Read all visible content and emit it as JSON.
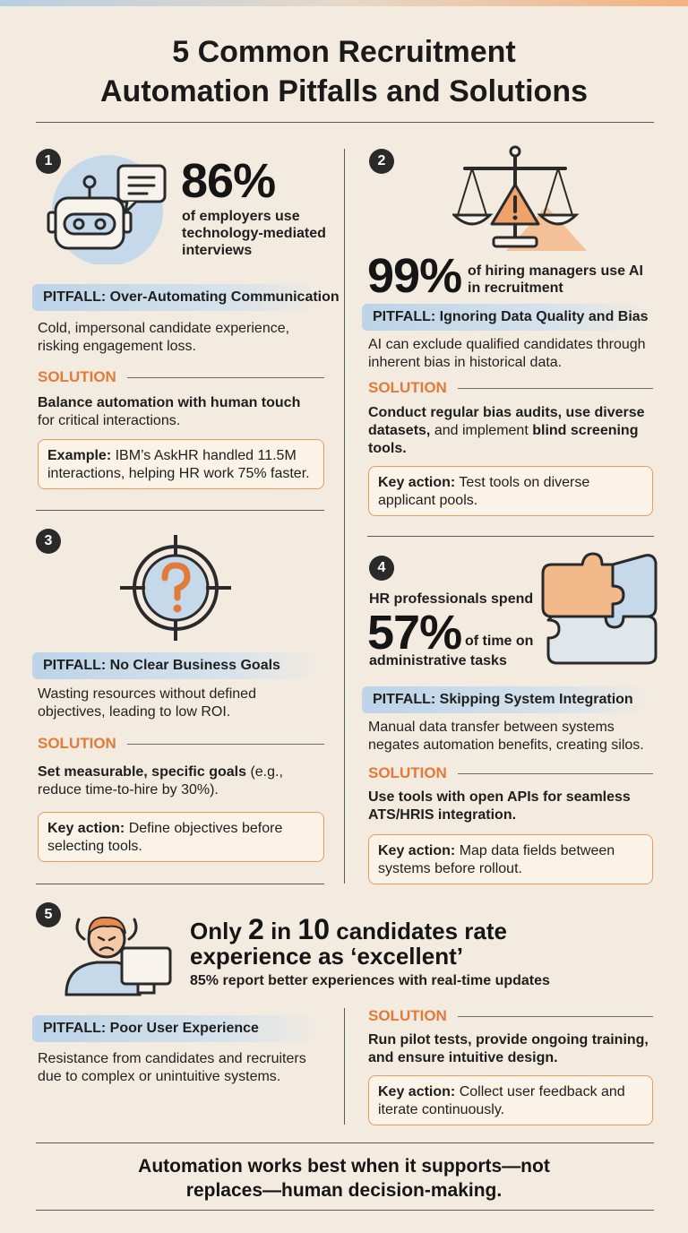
{
  "title": {
    "line1": "5 Common Recruitment",
    "line2": "Automation Pitfalls and Solutions"
  },
  "sections": [
    {
      "number": "1",
      "icon": "robot-chat-icon",
      "stat_value": "86%",
      "stat_text": "of employers use technology-mediated interviews",
      "pitfall": "PITFALL: Over-Automating Communication",
      "description": "Cold, impersonal candidate experience, risking engagement loss.",
      "solution_label": "SOLUTION",
      "solution_bold": "Balance automation with human touch",
      "solution_rest": "for critical interactions.",
      "box_label": "Example:",
      "box_text": "IBM’s AskHR handled 11.5M interactions, helping HR work 75% faster."
    },
    {
      "number": "2",
      "icon": "scale-warning-icon",
      "stat_value": "99%",
      "stat_text": "of hiring managers use AI in recruitment",
      "pitfall": "PITFALL: Ignoring Data Quality and Bias",
      "description": "AI can exclude qualified candidates through inherent bias in historical data.",
      "solution_label": "SOLUTION",
      "solution_bold_1": "Conduct regular bias audits, use diverse datasets,",
      "solution_mid": "and implement",
      "solution_bold_2": "blind screening tools.",
      "box_label": "Key action:",
      "box_text": "Test tools on diverse applicant pools."
    },
    {
      "number": "3",
      "icon": "target-question-icon",
      "pitfall": "PITFALL: No Clear Business Goals",
      "description": "Wasting resources without defined objectives, leading to low ROI.",
      "solution_label": "SOLUTION",
      "solution_bold": "Set measurable, specific goals",
      "solution_rest": "(e.g., reduce time-to-hire by 30%).",
      "box_label": "Key action:",
      "box_text": "Define objectives before selecting tools."
    },
    {
      "number": "4",
      "icon": "puzzle-icon",
      "stat_pre": "HR professionals spend",
      "stat_value": "57%",
      "stat_suffix": "of time on",
      "stat_post": "administrative tasks",
      "pitfall": "PITFALL: Skipping System Integration",
      "description": "Manual data transfer between systems negates automation benefits, creating silos.",
      "solution_label": "SOLUTION",
      "solution_bold": "Use tools with open APIs for seamless ATS/HRIS integration.",
      "box_label": "Key action:",
      "box_text": "Map data fields between systems before rollout."
    },
    {
      "number": "5",
      "icon": "frustrated-user-icon",
      "stat_pre": "Only",
      "stat_num1": "2",
      "stat_in": "in",
      "stat_num2": "10",
      "stat_rest": "candidates rate",
      "stat_line2": "experience as ‘excellent’",
      "stat_sub": "85% report better experiences with real-time updates",
      "pitfall": "PITFALL: Poor User Experience",
      "description": "Resistance from candidates and recruiters due to complex or unintuitive systems.",
      "solution_label": "SOLUTION",
      "solution_bold": "Run pilot tests, provide ongoing training, and ensure intuitive design.",
      "box_label": "Key action:",
      "box_text": "Collect user feedback and iterate continuously."
    }
  ],
  "footer": {
    "line1": "Automation works best when it supports—not",
    "line2": "replaces—human decision-making."
  },
  "colors": {
    "background": "#f3ebe0",
    "accent_orange": "#e07b39",
    "pitfall_blue": "#bcd3e8",
    "dark": "#1d1d1d"
  }
}
